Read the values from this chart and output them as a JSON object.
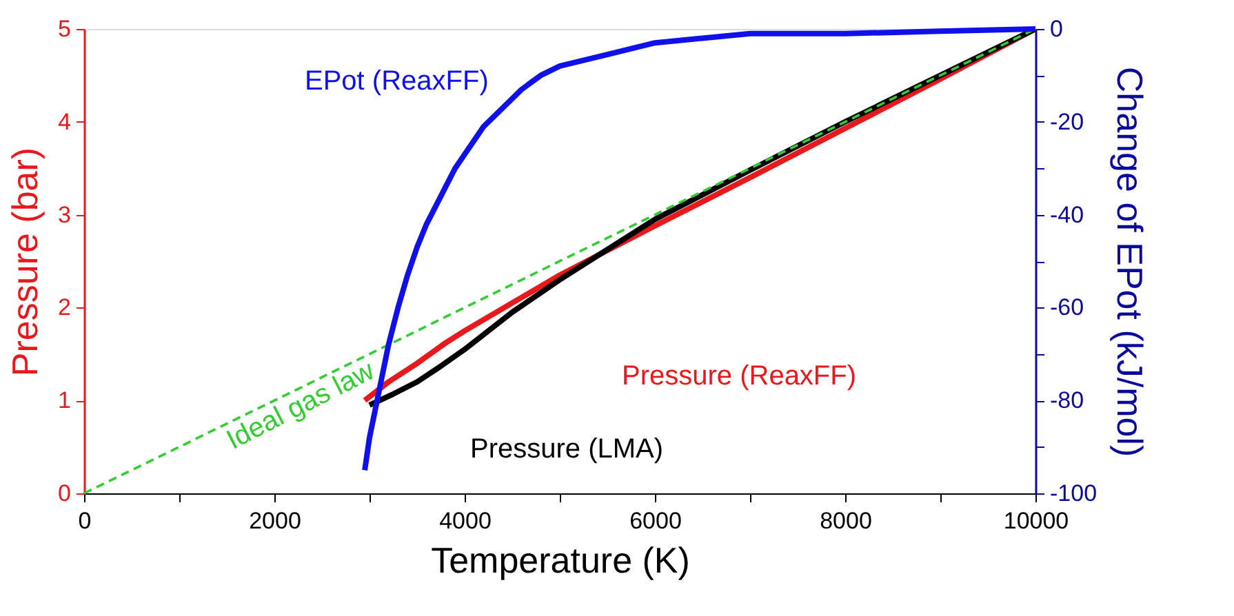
{
  "chart_data": {
    "type": "line",
    "xlabel": "Temperature (K)",
    "ylabel": "Pressure (bar)",
    "y2label": "Change of EPot (kJ/mol)",
    "xlim": [
      0,
      10000
    ],
    "xticks": [
      0,
      {
        "value": 1000,
        "label": null
      },
      2000,
      {
        "value": 3000,
        "label": null
      },
      4000,
      {
        "value": 5000,
        "label": null
      },
      6000,
      {
        "value": 7000,
        "label": null
      },
      8000,
      {
        "value": 9000,
        "label": null
      },
      10000
    ],
    "ylim": [
      0,
      5
    ],
    "yticks": [
      0,
      {
        "value": 0.5,
        "label": null
      },
      1,
      {
        "value": 1.5,
        "label": null
      },
      2,
      {
        "value": 2.5,
        "label": null
      },
      3,
      {
        "value": 3.5,
        "label": null
      },
      4,
      {
        "value": 4.5,
        "label": null
      },
      5
    ],
    "y2lim": [
      -100,
      0
    ],
    "y2ticks": [
      -100,
      {
        "value": -90,
        "label": null
      },
      -80,
      {
        "value": -70,
        "label": null
      },
      -60,
      {
        "value": -50,
        "label": null
      },
      -40,
      {
        "value": -30,
        "label": null
      },
      -20,
      {
        "value": -10,
        "label": null
      },
      0
    ],
    "grid": false,
    "marker": "none",
    "series": [
      {
        "name": "Ideal gas law",
        "color": "#33cc33",
        "line_style": "dashed",
        "x": [
          0,
          10000
        ],
        "values": [
          0,
          5
        ]
      },
      {
        "name": "Pressure (ReaxFF)",
        "color": "#e8191d",
        "x": [
          2950,
          3200,
          3500,
          3800,
          4000,
          4500,
          5000,
          6000,
          7000,
          8000,
          9000,
          10000
        ],
        "values": [
          1.0,
          1.2,
          1.4,
          1.62,
          1.75,
          2.05,
          2.35,
          2.88,
          3.4,
          3.93,
          4.46,
          5.0
        ]
      },
      {
        "name": "Pressure (LMA)",
        "color": "#000000",
        "x": [
          3000,
          3250,
          3500,
          3750,
          4000,
          4500,
          5000,
          6000,
          7000,
          8000,
          9000,
          10000
        ],
        "values": [
          0.95,
          1.07,
          1.2,
          1.37,
          1.55,
          1.95,
          2.3,
          2.95,
          3.48,
          4.0,
          4.5,
          5.0
        ]
      },
      {
        "name": "EPot (ReaxFF)",
        "color": "#1010e8",
        "axis": "y2",
        "x": [
          2950,
          3000,
          3100,
          3200,
          3300,
          3400,
          3500,
          3600,
          3700,
          3800,
          3900,
          4000,
          4200,
          4400,
          4600,
          4800,
          5000,
          5500,
          6000,
          6500,
          7000,
          8000,
          9000,
          10000
        ],
        "values": [
          -95,
          -88,
          -78,
          -68,
          -60,
          -53,
          -47,
          -42,
          -38,
          -34,
          -30,
          -27,
          -21,
          -17,
          -13,
          -10,
          -8,
          -5.5,
          -3,
          -2,
          -1,
          -1,
          -0.5,
          0
        ]
      }
    ]
  }
}
